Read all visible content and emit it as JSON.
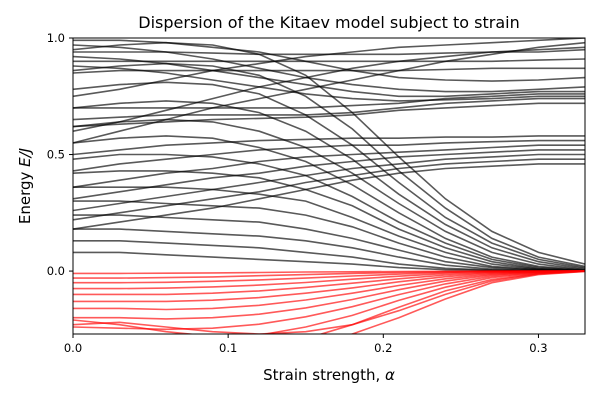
{
  "chart_data": {
    "type": "line",
    "title": "Dispersion of the Kitaev model subject to strain",
    "xlabel_text": "Strain strength, ",
    "xlabel_symbol": "α",
    "ylabel_text": "Energy ",
    "ylabel_symbol": "E/J",
    "xlim": [
      0.0,
      0.33
    ],
    "ylim": [
      -0.27,
      1.0
    ],
    "xticks": [
      0.0,
      0.1,
      0.2,
      0.3
    ],
    "xtick_labels": [
      "0.0",
      "0.1",
      "0.2",
      "0.3"
    ],
    "yticks": [
      0.0,
      0.5,
      1.0
    ],
    "ytick_labels": [
      "0.0",
      "0.5",
      "1.0"
    ],
    "grid": false,
    "legend": false,
    "colors": {
      "upper_bands": "#000000",
      "lower_bands": "#ff0000"
    },
    "line_opacity": 0.65,
    "x": [
      0.0,
      0.03,
      0.06,
      0.09,
      0.12,
      0.15,
      0.18,
      0.21,
      0.24,
      0.27,
      0.3,
      0.33
    ],
    "series_groups": [
      {
        "group": "upper_bands",
        "color": "#000000",
        "series": [
          {
            "values": [
              0.08,
              0.08,
              0.07,
              0.06,
              0.05,
              0.04,
              0.03,
              0.015,
              0.006,
              0.002,
              0.0,
              0.0
            ]
          },
          {
            "values": [
              0.13,
              0.13,
              0.12,
              0.11,
              0.1,
              0.08,
              0.06,
              0.03,
              0.012,
              0.004,
              0.001,
              0.0
            ]
          },
          {
            "values": [
              0.18,
              0.18,
              0.17,
              0.16,
              0.15,
              0.13,
              0.1,
              0.06,
              0.025,
              0.008,
              0.002,
              0.0
            ]
          },
          {
            "values": [
              0.24,
              0.24,
              0.23,
              0.22,
              0.21,
              0.18,
              0.14,
              0.09,
              0.04,
              0.015,
              0.004,
              0.0
            ]
          },
          {
            "values": [
              0.3,
              0.3,
              0.29,
              0.28,
              0.27,
              0.24,
              0.19,
              0.12,
              0.06,
              0.02,
              0.006,
              0.001
            ]
          },
          {
            "values": [
              0.36,
              0.36,
              0.36,
              0.35,
              0.33,
              0.3,
              0.23,
              0.15,
              0.08,
              0.03,
              0.008,
              0.001
            ]
          },
          {
            "values": [
              0.42,
              0.43,
              0.43,
              0.42,
              0.4,
              0.35,
              0.28,
              0.18,
              0.1,
              0.04,
              0.01,
              0.002
            ]
          },
          {
            "values": [
              0.48,
              0.5,
              0.5,
              0.49,
              0.46,
              0.41,
              0.32,
              0.21,
              0.12,
              0.05,
              0.015,
              0.003
            ]
          },
          {
            "values": [
              0.55,
              0.57,
              0.58,
              0.57,
              0.53,
              0.47,
              0.37,
              0.25,
              0.14,
              0.06,
              0.02,
              0.004
            ]
          },
          {
            "values": [
              0.62,
              0.64,
              0.65,
              0.64,
              0.6,
              0.53,
              0.42,
              0.29,
              0.17,
              0.08,
              0.03,
              0.006
            ]
          },
          {
            "values": [
              0.7,
              0.72,
              0.73,
              0.72,
              0.68,
              0.6,
              0.48,
              0.33,
              0.2,
              0.1,
              0.04,
              0.01
            ]
          },
          {
            "values": [
              0.78,
              0.8,
              0.81,
              0.8,
              0.76,
              0.67,
              0.54,
              0.38,
              0.23,
              0.12,
              0.05,
              0.015
            ]
          },
          {
            "values": [
              0.86,
              0.88,
              0.89,
              0.88,
              0.84,
              0.75,
              0.61,
              0.43,
              0.27,
              0.14,
              0.06,
              0.02
            ]
          },
          {
            "values": [
              0.95,
              0.97,
              0.98,
              0.97,
              0.93,
              0.84,
              0.68,
              0.49,
              0.31,
              0.17,
              0.08,
              0.03
            ]
          },
          {
            "values": [
              0.18,
              0.21,
              0.24,
              0.27,
              0.31,
              0.35,
              0.39,
              0.42,
              0.44,
              0.45,
              0.46,
              0.46
            ]
          },
          {
            "values": [
              0.22,
              0.25,
              0.28,
              0.31,
              0.34,
              0.38,
              0.41,
              0.44,
              0.46,
              0.47,
              0.48,
              0.48
            ]
          },
          {
            "values": [
              0.26,
              0.29,
              0.32,
              0.35,
              0.38,
              0.41,
              0.44,
              0.46,
              0.48,
              0.49,
              0.5,
              0.5
            ]
          },
          {
            "values": [
              0.31,
              0.34,
              0.37,
              0.4,
              0.42,
              0.45,
              0.47,
              0.49,
              0.5,
              0.51,
              0.52,
              0.52
            ]
          },
          {
            "values": [
              0.36,
              0.39,
              0.42,
              0.44,
              0.47,
              0.49,
              0.5,
              0.51,
              0.52,
              0.53,
              0.54,
              0.54
            ]
          },
          {
            "values": [
              0.43,
              0.46,
              0.48,
              0.5,
              0.52,
              0.53,
              0.54,
              0.54,
              0.55,
              0.555,
              0.56,
              0.56
            ]
          },
          {
            "values": [
              0.5,
              0.52,
              0.54,
              0.55,
              0.56,
              0.565,
              0.57,
              0.57,
              0.575,
              0.575,
              0.58,
              0.58
            ]
          },
          {
            "values": [
              0.65,
              0.66,
              0.67,
              0.67,
              0.67,
              0.67,
              0.68,
              0.7,
              0.72,
              0.73,
              0.74,
              0.74
            ]
          },
          {
            "values": [
              0.62,
              0.63,
              0.64,
              0.65,
              0.655,
              0.66,
              0.67,
              0.69,
              0.7,
              0.71,
              0.72,
              0.72
            ]
          },
          {
            "values": [
              0.7,
              0.7,
              0.7,
              0.7,
              0.7,
              0.7,
              0.71,
              0.72,
              0.74,
              0.75,
              0.76,
              0.76
            ]
          },
          {
            "values": [
              0.88,
              0.87,
              0.85,
              0.82,
              0.79,
              0.76,
              0.74,
              0.73,
              0.735,
              0.74,
              0.75,
              0.75
            ]
          },
          {
            "values": [
              0.92,
              0.91,
              0.89,
              0.86,
              0.83,
              0.8,
              0.77,
              0.75,
              0.75,
              0.76,
              0.77,
              0.77
            ]
          },
          {
            "values": [
              0.97,
              0.96,
              0.94,
              0.91,
              0.87,
              0.83,
              0.8,
              0.78,
              0.77,
              0.77,
              0.78,
              0.79
            ]
          },
          {
            "values": [
              0.85,
              0.86,
              0.86,
              0.86,
              0.86,
              0.86,
              0.86,
              0.86,
              0.865,
              0.87,
              0.87,
              0.87
            ]
          },
          {
            "values": [
              0.9,
              0.9,
              0.9,
              0.9,
              0.9,
              0.9,
              0.9,
              0.9,
              0.9,
              0.9,
              0.905,
              0.91
            ]
          },
          {
            "values": [
              0.94,
              0.94,
              0.94,
              0.935,
              0.93,
              0.93,
              0.93,
              0.93,
              0.935,
              0.94,
              0.94,
              0.95
            ]
          },
          {
            "values": [
              0.75,
              0.78,
              0.82,
              0.86,
              0.89,
              0.92,
              0.94,
              0.96,
              0.97,
              0.98,
              0.99,
              1.0
            ]
          },
          {
            "values": [
              0.55,
              0.6,
              0.65,
              0.7,
              0.74,
              0.78,
              0.82,
              0.86,
              0.9,
              0.93,
              0.96,
              0.98
            ]
          },
          {
            "values": [
              0.6,
              0.64,
              0.69,
              0.74,
              0.79,
              0.83,
              0.87,
              0.9,
              0.92,
              0.94,
              0.95,
              0.96
            ]
          },
          {
            "values": [
              0.99,
              0.99,
              0.98,
              0.96,
              0.94,
              0.9,
              0.86,
              0.83,
              0.82,
              0.815,
              0.82,
              0.83
            ]
          }
        ]
      },
      {
        "group": "lower_bands",
        "color": "#ff0000",
        "series": [
          {
            "values": [
              -0.01,
              -0.01,
              -0.009,
              -0.008,
              -0.006,
              -0.004,
              -0.003,
              -0.002,
              -0.001,
              0.0,
              0.0,
              0.0
            ]
          },
          {
            "values": [
              -0.03,
              -0.03,
              -0.028,
              -0.025,
              -0.02,
              -0.015,
              -0.01,
              -0.006,
              -0.003,
              -0.001,
              0.0,
              0.0
            ]
          },
          {
            "values": [
              -0.05,
              -0.05,
              -0.048,
              -0.044,
              -0.038,
              -0.03,
              -0.021,
              -0.013,
              -0.006,
              -0.002,
              -0.001,
              0.0
            ]
          },
          {
            "values": [
              -0.075,
              -0.075,
              -0.073,
              -0.068,
              -0.06,
              -0.049,
              -0.035,
              -0.022,
              -0.011,
              -0.004,
              -0.001,
              0.0
            ]
          },
          {
            "values": [
              -0.1,
              -0.1,
              -0.1,
              -0.095,
              -0.085,
              -0.07,
              -0.052,
              -0.033,
              -0.017,
              -0.006,
              -0.002,
              0.0
            ]
          },
          {
            "values": [
              -0.13,
              -0.13,
              -0.13,
              -0.125,
              -0.114,
              -0.095,
              -0.072,
              -0.046,
              -0.024,
              -0.009,
              -0.002,
              0.0
            ]
          },
          {
            "values": [
              -0.16,
              -0.16,
              -0.165,
              -0.16,
              -0.147,
              -0.124,
              -0.095,
              -0.062,
              -0.033,
              -0.013,
              -0.003,
              0.0
            ]
          },
          {
            "values": [
              -0.2,
              -0.2,
              -0.205,
              -0.2,
              -0.185,
              -0.158,
              -0.122,
              -0.08,
              -0.043,
              -0.017,
              -0.004,
              0.0
            ]
          },
          {
            "values": [
              -0.24,
              -0.245,
              -0.25,
              -0.245,
              -0.228,
              -0.196,
              -0.153,
              -0.101,
              -0.055,
              -0.022,
              -0.006,
              0.0
            ]
          },
          {
            "values": [
              -0.28,
              -0.29,
              -0.3,
              -0.295,
              -0.275,
              -0.24,
              -0.19,
              -0.126,
              -0.069,
              -0.028,
              -0.008,
              0.0
            ]
          },
          {
            "values": [
              -0.34,
              -0.35,
              -0.36,
              -0.355,
              -0.33,
              -0.29,
              -0.23,
              -0.155,
              -0.085,
              -0.036,
              -0.01,
              0.0
            ]
          },
          {
            "values": [
              -0.21,
              -0.23,
              -0.26,
              -0.28,
              -0.3,
              -0.3,
              -0.27,
              -0.2,
              -0.12,
              -0.05,
              -0.015,
              -0.002
            ]
          },
          {
            "values": [
              -0.23,
              -0.22,
              -0.24,
              -0.26,
              -0.27,
              -0.26,
              -0.23,
              -0.17,
              -0.1,
              -0.042,
              -0.012,
              -0.001
            ]
          }
        ]
      }
    ]
  }
}
